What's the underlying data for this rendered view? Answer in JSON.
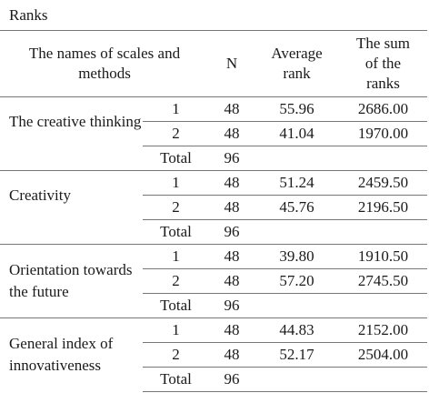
{
  "caption": "Ranks",
  "headers": {
    "name": "The names of scales and methods",
    "n": "N",
    "avg": "Average rank",
    "sum": "The sum of the ranks"
  },
  "groups": [
    {
      "name": "The creative thinking",
      "rows": [
        {
          "label": "1",
          "n": "48",
          "avg": "55.96",
          "sum": "2686.00"
        },
        {
          "label": "2",
          "n": "48",
          "avg": "41.04",
          "sum": "1970.00"
        },
        {
          "label": "Total",
          "n": "96",
          "avg": "",
          "sum": ""
        }
      ]
    },
    {
      "name": "Creativity",
      "rows": [
        {
          "label": "1",
          "n": "48",
          "avg": "51.24",
          "sum": "2459.50"
        },
        {
          "label": "2",
          "n": "48",
          "avg": "45.76",
          "sum": "2196.50"
        },
        {
          "label": "Total",
          "n": "96",
          "avg": "",
          "sum": ""
        }
      ]
    },
    {
      "name": "Orientation towards the future",
      "rows": [
        {
          "label": "1",
          "n": "48",
          "avg": "39.80",
          "sum": "1910.50"
        },
        {
          "label": "2",
          "n": "48",
          "avg": "57.20",
          "sum": "2745.50"
        },
        {
          "label": "Total",
          "n": "96",
          "avg": "",
          "sum": ""
        }
      ]
    },
    {
      "name": "General index of innovativeness",
      "rows": [
        {
          "label": "1",
          "n": "48",
          "avg": "44.83",
          "sum": "2152.00"
        },
        {
          "label": "2",
          "n": "48",
          "avg": "52.17",
          "sum": "2504.00"
        },
        {
          "label": "Total",
          "n": "96",
          "avg": "",
          "sum": ""
        }
      ]
    }
  ]
}
